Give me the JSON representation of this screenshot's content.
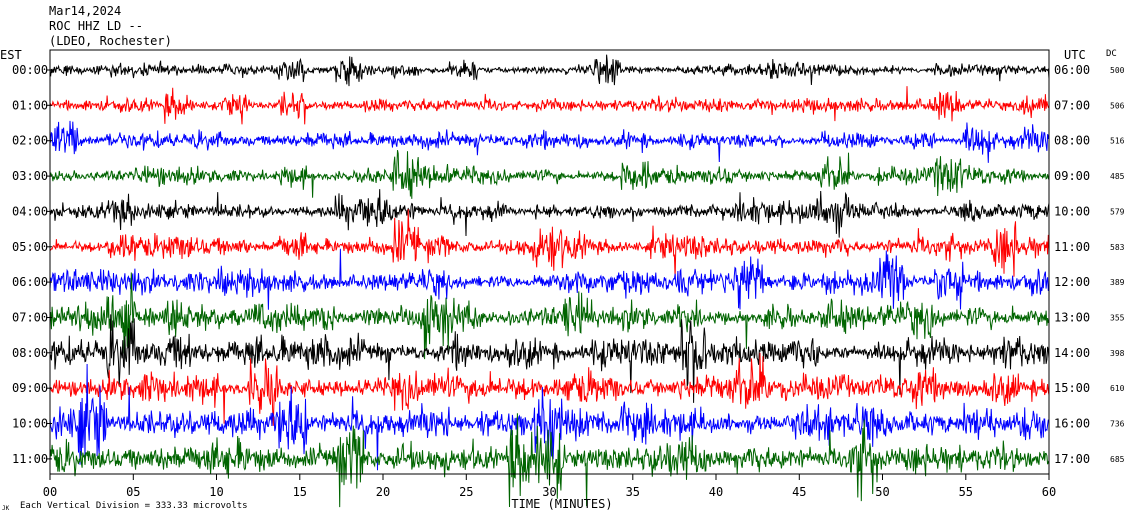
{
  "header": {
    "date": "Mar14,2024",
    "station": "ROC HHZ LD --",
    "network": "(LDEO, Rochester)"
  },
  "labels": {
    "left_tz": "EST",
    "right_tz": "UTC",
    "dc_header": "DC",
    "footer": "Each Vertical Division = 333.33 microvolts",
    "footer_mark": "JK"
  },
  "chart_data": {
    "type": "line",
    "title": "Mar14,2024 ROC HHZ LD -- (LDEO, Rochester)",
    "xlabel": "TIME (MINUTES)",
    "xlim": [
      0,
      60
    ],
    "x_ticks": [
      "00",
      "05",
      "10",
      "15",
      "20",
      "25",
      "30",
      "35",
      "40",
      "45",
      "50",
      "55",
      "60"
    ],
    "trace_colors": [
      "#000000",
      "#ff0000",
      "#0000ff",
      "#006400"
    ],
    "rows": [
      {
        "est": "00:00",
        "utc": "06:00",
        "dc": "500",
        "color": "#000000",
        "amp": 7
      },
      {
        "est": "01:00",
        "utc": "07:00",
        "dc": "506",
        "color": "#ff0000",
        "amp": 8
      },
      {
        "est": "02:00",
        "utc": "08:00",
        "dc": "516",
        "color": "#0000ff",
        "amp": 9
      },
      {
        "est": "03:00",
        "utc": "09:00",
        "dc": "485",
        "color": "#006400",
        "amp": 11
      },
      {
        "est": "04:00",
        "utc": "10:00",
        "dc": "579",
        "color": "#000000",
        "amp": 10
      },
      {
        "est": "05:00",
        "utc": "11:00",
        "dc": "583",
        "color": "#ff0000",
        "amp": 13
      },
      {
        "est": "06:00",
        "utc": "12:00",
        "dc": "389",
        "color": "#0000ff",
        "amp": 14
      },
      {
        "est": "07:00",
        "utc": "13:00",
        "dc": "355",
        "color": "#006400",
        "amp": 16
      },
      {
        "est": "08:00",
        "utc": "14:00",
        "dc": "398",
        "color": "#000000",
        "amp": 17
      },
      {
        "est": "09:00",
        "utc": "15:00",
        "dc": "610",
        "color": "#ff0000",
        "amp": 18
      },
      {
        "est": "10:00",
        "utc": "16:00",
        "dc": "736",
        "color": "#0000ff",
        "amp": 19
      },
      {
        "est": "11:00",
        "utc": "17:00",
        "dc": "685",
        "color": "#006400",
        "amp": 20
      }
    ]
  }
}
